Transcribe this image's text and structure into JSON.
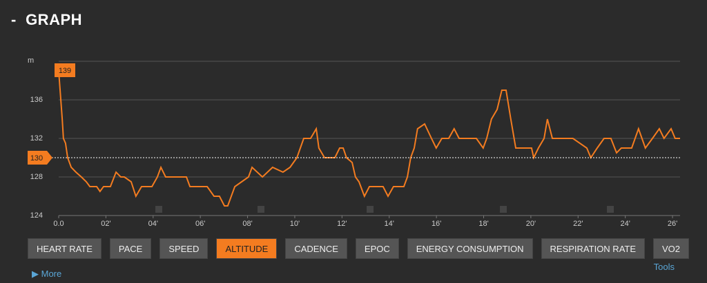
{
  "header": {
    "title": "GRAPH"
  },
  "chart_data": {
    "type": "line",
    "y_unit": "m",
    "color": "#f47c20",
    "x": [
      0,
      0.06,
      0.09,
      0.15,
      0.2,
      0.29,
      0.38,
      0.53,
      0.73,
      0.96,
      1.17,
      1.32,
      1.61,
      1.75,
      1.9,
      2.19,
      2.43,
      2.63,
      2.78,
      3.07,
      3.27,
      3.51,
      3.95,
      4.18,
      4.33,
      4.53,
      4.82,
      5.41,
      5.56,
      6.29,
      6.58,
      6.81,
      7.02,
      7.16,
      7.46,
      7.75,
      8.04,
      8.19,
      8.63,
      9.06,
      9.5,
      9.8,
      10.09,
      10.38,
      10.67,
      10.91,
      11.02,
      11.26,
      11.7,
      11.9,
      12.05,
      12.19,
      12.43,
      12.57,
      12.72,
      12.95,
      13.16,
      13.45,
      13.74,
      13.95,
      14.18,
      14.62,
      14.77,
      14.91,
      15.06,
      15.2,
      15.5,
      15.79,
      15.99,
      16.23,
      16.52,
      16.75,
      16.96,
      17.69,
      17.98,
      18.13,
      18.33,
      18.57,
      18.77,
      18.95,
      19.15,
      19.36,
      19.74,
      20.03,
      20.12,
      20.32,
      20.56,
      20.7,
      20.91,
      21.2,
      21.78,
      22.37,
      22.54,
      22.81,
      23.1,
      23.39,
      23.63,
      23.83,
      24.27,
      24.56,
      24.85,
      25.15,
      25.44,
      25.64,
      25.94,
      26.11,
      26.32
    ],
    "values": [
      139,
      137,
      136,
      134,
      132,
      131.5,
      130,
      129,
      128.5,
      128,
      127.5,
      127,
      127,
      126.5,
      127,
      127,
      128.5,
      128,
      128,
      127.5,
      126,
      127,
      127,
      128,
      129,
      128,
      128,
      128,
      127,
      127,
      126,
      126,
      125,
      125,
      127,
      127.5,
      128,
      129,
      128,
      129,
      128.5,
      129,
      130,
      132,
      132,
      133,
      131,
      130,
      130,
      131,
      131,
      130,
      129.5,
      128,
      127.5,
      126,
      127,
      127,
      127,
      126,
      127,
      127,
      128,
      130,
      131,
      133,
      133.5,
      132,
      131,
      132,
      132,
      133,
      132,
      132,
      131,
      132,
      134,
      135,
      137,
      137,
      134,
      131,
      131,
      131,
      130,
      131,
      132,
      134,
      132,
      132,
      132,
      131,
      130,
      131,
      132,
      132,
      130.5,
      131,
      131,
      133,
      131,
      132,
      133,
      132,
      133,
      132,
      132
    ],
    "xlim": [
      0,
      26.32
    ],
    "xticks": [
      {
        "value": 0,
        "label": "0.0"
      },
      {
        "value": 2,
        "label": "02'"
      },
      {
        "value": 4,
        "label": "04'"
      },
      {
        "value": 6,
        "label": "06'"
      },
      {
        "value": 8,
        "label": "08'"
      },
      {
        "value": 10,
        "label": "10'"
      },
      {
        "value": 12,
        "label": "12'"
      },
      {
        "value": 14,
        "label": "14'"
      },
      {
        "value": 16,
        "label": "16'"
      },
      {
        "value": 18,
        "label": "18'"
      },
      {
        "value": 20,
        "label": "20'"
      },
      {
        "value": 22,
        "label": "22'"
      },
      {
        "value": 24,
        "label": "24'"
      },
      {
        "value": 26,
        "label": "26'"
      }
    ],
    "ylim": [
      124,
      140
    ],
    "yticks": [
      124,
      128,
      132,
      136
    ],
    "grid": true,
    "max": 139,
    "average": 130
  },
  "buttons": [
    "HEART RATE",
    "PACE",
    "SPEED",
    "ALTITUDE",
    "CADENCE",
    "EPOC",
    "ENERGY CONSUMPTION",
    "RESPIRATION RATE",
    "VO2"
  ],
  "active_button": 3,
  "links": {
    "tools": "Tools",
    "more": "More"
  }
}
